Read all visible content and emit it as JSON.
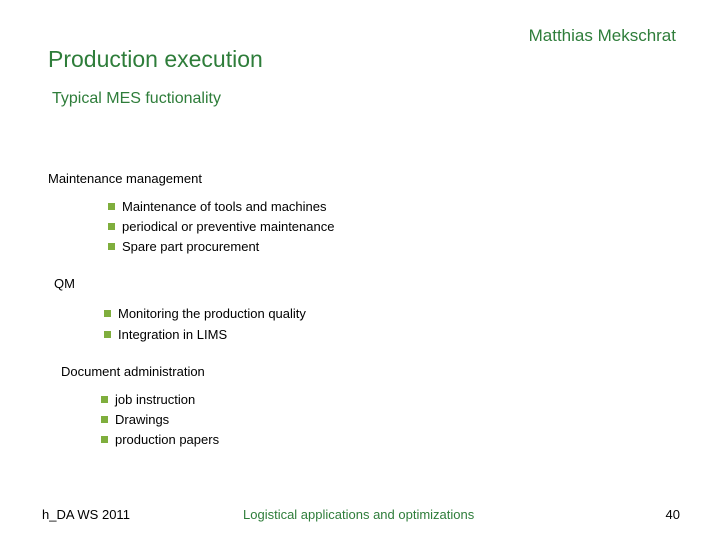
{
  "header": {
    "author": "Matthias Mekschrat",
    "title": "Production execution",
    "subtitle": "Typical MES fuctionality"
  },
  "sections": [
    {
      "heading": "Maintenance management",
      "items": [
        "Maintenance of  tools and machines",
        "periodical or preventive maintenance",
        "Spare part procurement"
      ]
    },
    {
      "heading": "QM",
      "items": [
        "Monitoring the production quality",
        "Integration in LIMS"
      ]
    },
    {
      "heading": "Document administration",
      "items": [
        "job instruction",
        "Drawings",
        "production papers"
      ]
    }
  ],
  "footer": {
    "left": "h_DA  WS 2011",
    "center": "Logistical applications and optimizations",
    "page": "40"
  },
  "colors": {
    "accent": "#2e7d3a",
    "bullet": "#7fae3d"
  }
}
